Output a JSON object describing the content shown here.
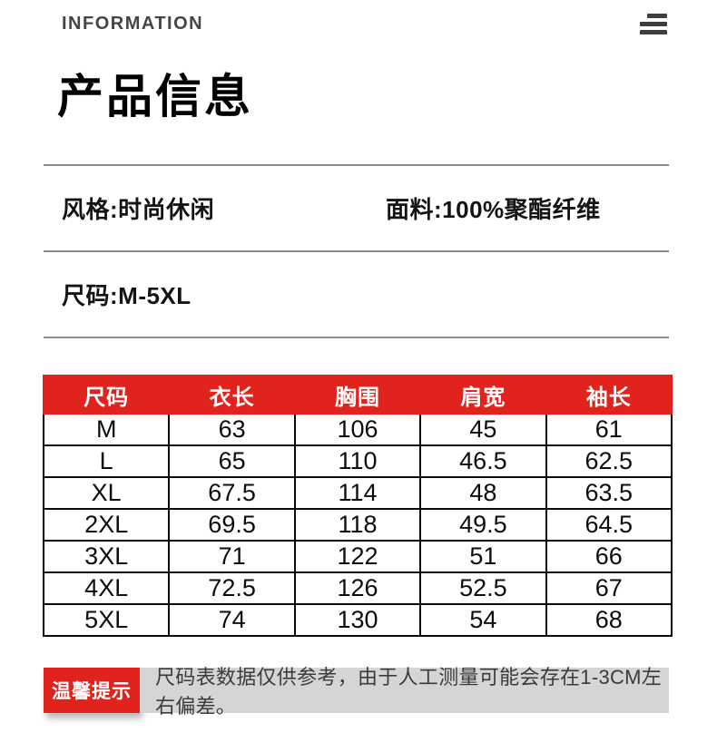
{
  "header": {
    "brand": "INFORMATION",
    "menu_icon": "hamburger-menu-icon"
  },
  "page_title": "产品信息",
  "specs": {
    "style": "风格:时尚休闲",
    "fabric": "面料:100%聚酯纤维",
    "size_range": "尺码:M-5XL"
  },
  "size_table": {
    "columns": [
      "尺码",
      "衣长",
      "胸围",
      "肩宽",
      "袖长"
    ],
    "rows": [
      [
        "M",
        "63",
        "106",
        "45",
        "61"
      ],
      [
        "L",
        "65",
        "110",
        "46.5",
        "62.5"
      ],
      [
        "XL",
        "67.5",
        "114",
        "48",
        "63.5"
      ],
      [
        "2XL",
        "69.5",
        "118",
        "49.5",
        "64.5"
      ],
      [
        "3XL",
        "71",
        "122",
        "51",
        "66"
      ],
      [
        "4XL",
        "72.5",
        "126",
        "52.5",
        "67"
      ],
      [
        "5XL",
        "74",
        "130",
        "54",
        "68"
      ]
    ]
  },
  "footer": {
    "badge": "温馨提示",
    "note": "尺码表数据仅供参考，由于人工测量可能会存在1-3CM左右偏差。"
  },
  "colors": {
    "accent_red": "#e0231c",
    "note_bar_gray": "#d5d5d5",
    "divider_gray": "#8d8d8d",
    "brand_gray": "#454545"
  }
}
